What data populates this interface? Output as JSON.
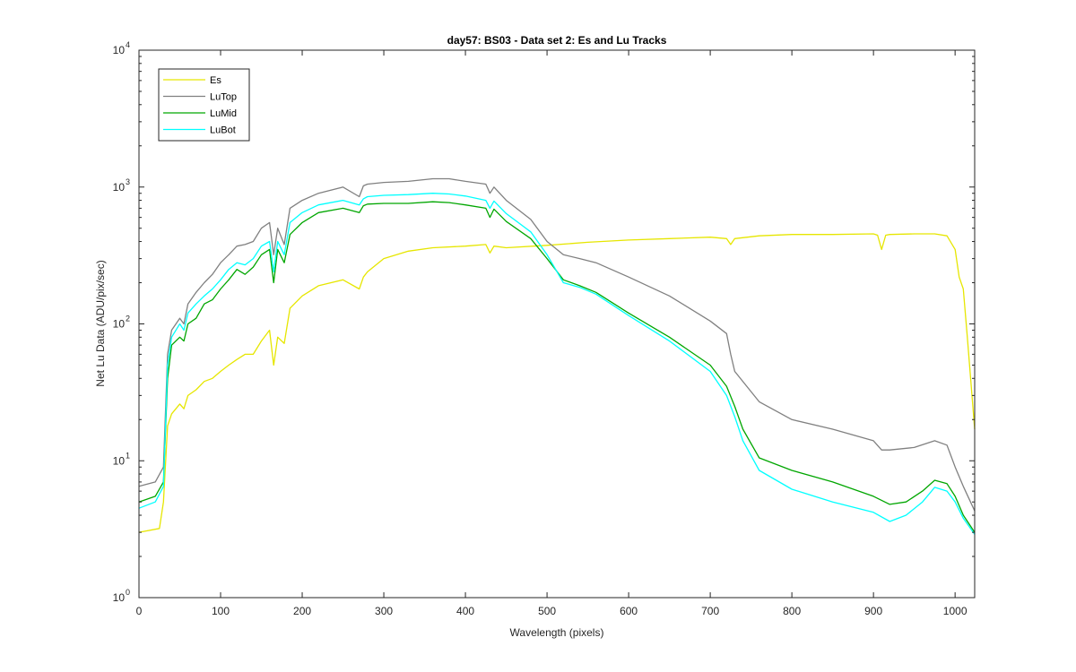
{
  "chart_data": {
    "type": "line",
    "title": "day57: BS03 - Data set 2: Es and Lu Tracks",
    "xlabel": "Wavelength (pixels)",
    "ylabel": "Net Lu Data (ADU/pix/sec)",
    "xlim": [
      0,
      1024
    ],
    "ylim": [
      1,
      10000
    ],
    "yscale": "log",
    "grid": false,
    "legend_position": "top-left",
    "x_ticks": [
      "0",
      "100",
      "200",
      "300",
      "400",
      "500",
      "600",
      "700",
      "800",
      "900",
      "1000"
    ],
    "y_ticks": [
      {
        "base": "10",
        "exp": "0"
      },
      {
        "base": "10",
        "exp": "1"
      },
      {
        "base": "10",
        "exp": "2"
      },
      {
        "base": "10",
        "exp": "3"
      },
      {
        "base": "10",
        "exp": "4"
      }
    ],
    "series": [
      {
        "name": "Es",
        "color": "#e6e600",
        "x": [
          0,
          25,
          30,
          35,
          40,
          50,
          55,
          60,
          70,
          80,
          90,
          100,
          110,
          120,
          130,
          140,
          150,
          160,
          165,
          170,
          178,
          185,
          200,
          220,
          250,
          270,
          275,
          280,
          300,
          330,
          360,
          400,
          425,
          430,
          435,
          450,
          500,
          550,
          600,
          650,
          700,
          720,
          725,
          730,
          760,
          800,
          850,
          900,
          905,
          910,
          915,
          920,
          950,
          975,
          990,
          1000,
          1005,
          1010,
          1015,
          1024
        ],
        "values": [
          3.0,
          3.2,
          5.0,
          18.0,
          22.0,
          26.0,
          24.0,
          30.0,
          33.0,
          38.0,
          40.0,
          45.0,
          50.0,
          55.0,
          60.0,
          60.0,
          75.0,
          90.0,
          50.0,
          80.0,
          72.0,
          130.0,
          160.0,
          190.0,
          210.0,
          180.0,
          220.0,
          240.0,
          300.0,
          340.0,
          360.0,
          370.0,
          380.0,
          330.0,
          370.0,
          360.0,
          375.0,
          395.0,
          410.0,
          420.0,
          430.0,
          420.0,
          380.0,
          420.0,
          440.0,
          450.0,
          450.0,
          455.0,
          445.0,
          350.0,
          445.0,
          450.0,
          455.0,
          455.0,
          440.0,
          350.0,
          220.0,
          180.0,
          80.0,
          17.0
        ]
      },
      {
        "name": "LuTop",
        "color": "#808080",
        "x": [
          0,
          20,
          30,
          35,
          40,
          50,
          55,
          60,
          70,
          80,
          90,
          100,
          110,
          120,
          130,
          140,
          150,
          160,
          165,
          170,
          178,
          185,
          200,
          220,
          250,
          270,
          275,
          280,
          300,
          330,
          360,
          380,
          400,
          425,
          430,
          435,
          450,
          480,
          500,
          520,
          540,
          560,
          600,
          650,
          700,
          720,
          725,
          730,
          760,
          800,
          850,
          900,
          910,
          920,
          950,
          975,
          990,
          1000,
          1010,
          1024
        ],
        "values": [
          6.5,
          7.0,
          9.0,
          60.0,
          90.0,
          110.0,
          100.0,
          140.0,
          170.0,
          200.0,
          230.0,
          280.0,
          320.0,
          370.0,
          380.0,
          400.0,
          500.0,
          550.0,
          320.0,
          500.0,
          380.0,
          700.0,
          800.0,
          900.0,
          1000.0,
          850.0,
          1020.0,
          1050.0,
          1080.0,
          1100.0,
          1150.0,
          1150.0,
          1100.0,
          1050.0,
          900.0,
          1000.0,
          800.0,
          580.0,
          400.0,
          320.0,
          300.0,
          280.0,
          220.0,
          160.0,
          105.0,
          85.0,
          60.0,
          45.0,
          27.0,
          20.0,
          17.0,
          14.0,
          12.0,
          12.0,
          12.5,
          14.0,
          13.0,
          9.0,
          6.5,
          4.3
        ]
      },
      {
        "name": "LuMid",
        "color": "#00a600",
        "x": [
          0,
          20,
          30,
          35,
          40,
          50,
          55,
          60,
          70,
          80,
          90,
          100,
          110,
          120,
          130,
          140,
          150,
          160,
          165,
          170,
          178,
          185,
          200,
          220,
          250,
          270,
          275,
          280,
          300,
          330,
          360,
          380,
          400,
          425,
          430,
          435,
          450,
          480,
          500,
          520,
          540,
          560,
          600,
          650,
          700,
          720,
          730,
          740,
          760,
          800,
          850,
          900,
          920,
          940,
          960,
          975,
          990,
          1000,
          1010,
          1024
        ],
        "values": [
          5.0,
          5.5,
          7.0,
          40.0,
          70.0,
          80.0,
          75.0,
          100.0,
          110.0,
          140.0,
          150.0,
          180.0,
          210.0,
          250.0,
          230.0,
          260.0,
          320.0,
          350.0,
          200.0,
          350.0,
          280.0,
          450.0,
          550.0,
          650.0,
          700.0,
          650.0,
          730.0,
          750.0,
          760.0,
          760.0,
          780.0,
          770.0,
          740.0,
          700.0,
          600.0,
          690.0,
          560.0,
          420.0,
          300.0,
          210.0,
          190.0,
          170.0,
          120.0,
          80.0,
          50.0,
          35.0,
          25.0,
          17.0,
          10.5,
          8.5,
          7.0,
          5.5,
          4.8,
          5.0,
          6.0,
          7.2,
          6.8,
          5.5,
          4.0,
          3.0
        ]
      },
      {
        "name": "LuBot",
        "color": "#00ffff",
        "x": [
          0,
          20,
          30,
          35,
          40,
          50,
          55,
          60,
          70,
          80,
          90,
          100,
          110,
          120,
          130,
          140,
          150,
          160,
          165,
          170,
          178,
          185,
          200,
          220,
          250,
          270,
          275,
          280,
          300,
          330,
          360,
          380,
          400,
          425,
          430,
          435,
          450,
          480,
          500,
          520,
          540,
          560,
          600,
          650,
          700,
          720,
          730,
          740,
          760,
          800,
          850,
          900,
          920,
          940,
          960,
          975,
          990,
          1000,
          1010,
          1024
        ],
        "values": [
          4.5,
          5.0,
          6.5,
          50.0,
          80.0,
          100.0,
          90.0,
          120.0,
          140.0,
          160.0,
          180.0,
          210.0,
          250.0,
          280.0,
          270.0,
          300.0,
          370.0,
          400.0,
          240.0,
          400.0,
          320.0,
          550.0,
          650.0,
          740.0,
          800.0,
          740.0,
          820.0,
          850.0,
          870.0,
          880.0,
          900.0,
          890.0,
          860.0,
          800.0,
          700.0,
          790.0,
          640.0,
          470.0,
          320.0,
          200.0,
          185.0,
          165.0,
          115.0,
          75.0,
          45.0,
          30.0,
          21.0,
          14.0,
          8.5,
          6.2,
          5.0,
          4.2,
          3.6,
          4.0,
          5.0,
          6.4,
          6.0,
          5.0,
          3.8,
          2.9
        ]
      }
    ]
  }
}
